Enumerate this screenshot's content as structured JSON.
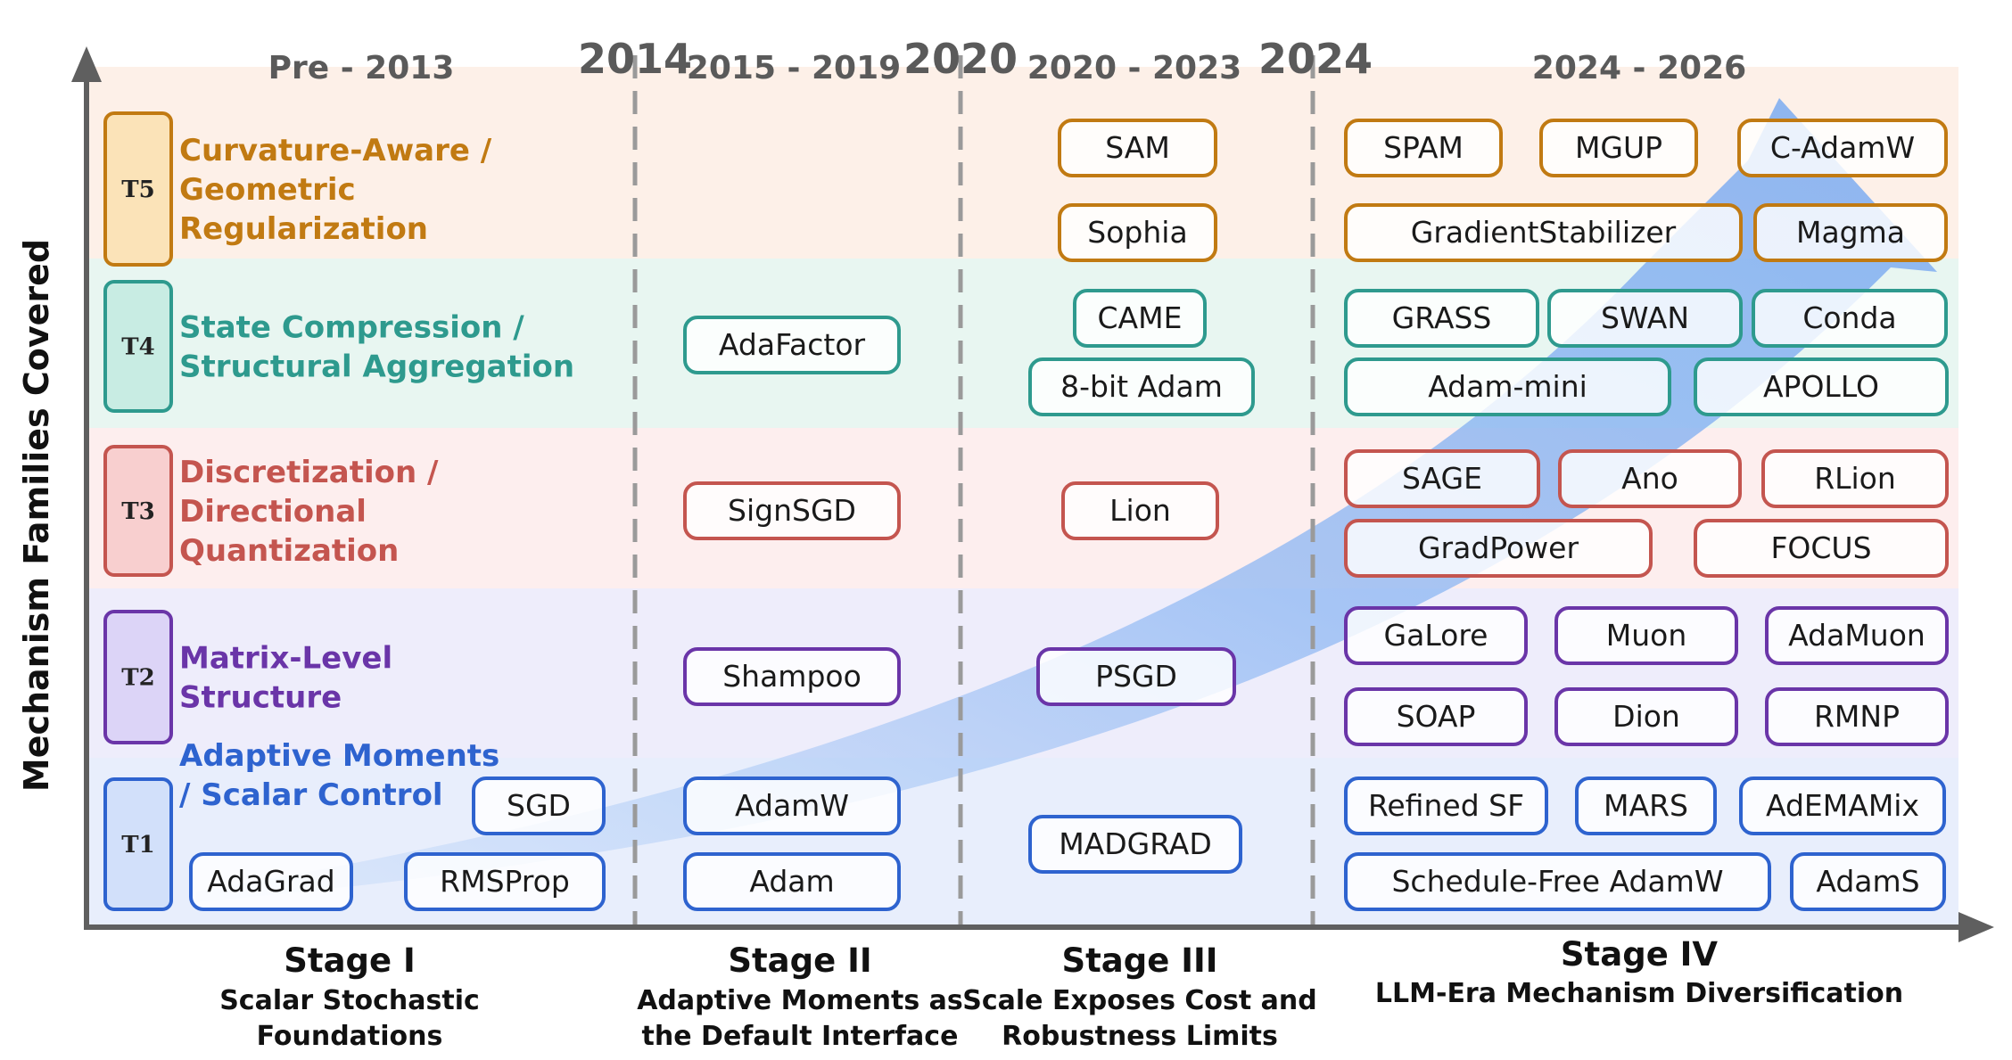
{
  "axes": {
    "y_title": "Mechanism Families Covered"
  },
  "periods": [
    {
      "label": "Pre - 2013"
    },
    {
      "label": "2015 - 2019"
    },
    {
      "label": "2020 - 2023"
    },
    {
      "label": "2024 - 2026"
    }
  ],
  "boundary_years": [
    "2014",
    "2020",
    "2024"
  ],
  "stages": [
    {
      "title": "Stage I",
      "subtitle": [
        "Scalar Stochastic",
        "Foundations"
      ]
    },
    {
      "title": "Stage II",
      "subtitle": [
        "Adaptive Moments as",
        "the Default Interface"
      ]
    },
    {
      "title": "Stage III",
      "subtitle": [
        "Scale Exposes Cost and",
        "Robustness Limits"
      ]
    },
    {
      "title": "Stage IV",
      "subtitle": [
        "LLM-Era Mechanism Diversification"
      ]
    }
  ],
  "tiers": [
    {
      "code": "T5",
      "name": [
        "Curvature-Aware /",
        "Geometric",
        "Regularization"
      ],
      "color": "#c17a12",
      "fill": "#fbe3b8",
      "band": "#fdf0e8"
    },
    {
      "code": "T4",
      "name": [
        "State Compression /",
        "Structural Aggregation"
      ],
      "color": "#2e9a8e",
      "fill": "#c8ece3",
      "band": "#e8f6f1"
    },
    {
      "code": "T3",
      "name": [
        "Discretization /",
        "Directional",
        "Quantization"
      ],
      "color": "#c4554f",
      "fill": "#f8cfcf",
      "band": "#fdeeee"
    },
    {
      "code": "T2",
      "name": [
        "Matrix-Level",
        "Structure"
      ],
      "color": "#6a35a8",
      "fill": "#dcd4f7",
      "band": "#eeedfb"
    },
    {
      "code": "T1",
      "name": [
        "Adaptive Moments",
        "/ Scalar Control"
      ],
      "color": "#2e63cf",
      "fill": "#d2e0fa",
      "band": "#e8eefc"
    }
  ],
  "methods": [
    {
      "label": "SGD",
      "tier": "T1"
    },
    {
      "label": "AdaGrad",
      "tier": "T1"
    },
    {
      "label": "RMSProp",
      "tier": "T1"
    },
    {
      "label": "AdamW",
      "tier": "T1"
    },
    {
      "label": "Adam",
      "tier": "T1"
    },
    {
      "label": "MADGRAD",
      "tier": "T1"
    },
    {
      "label": "Refined SF",
      "tier": "T1"
    },
    {
      "label": "MARS",
      "tier": "T1"
    },
    {
      "label": "AdEMAMix",
      "tier": "T1"
    },
    {
      "label": "Schedule-Free AdamW",
      "tier": "T1"
    },
    {
      "label": "AdamS",
      "tier": "T1"
    },
    {
      "label": "Shampoo",
      "tier": "T2"
    },
    {
      "label": "PSGD",
      "tier": "T2"
    },
    {
      "label": "GaLore",
      "tier": "T2"
    },
    {
      "label": "Muon",
      "tier": "T2"
    },
    {
      "label": "AdaMuon",
      "tier": "T2"
    },
    {
      "label": "SOAP",
      "tier": "T2"
    },
    {
      "label": "Dion",
      "tier": "T2"
    },
    {
      "label": "RMNP",
      "tier": "T2"
    },
    {
      "label": "SignSGD",
      "tier": "T3"
    },
    {
      "label": "Lion",
      "tier": "T3"
    },
    {
      "label": "SAGE",
      "tier": "T3"
    },
    {
      "label": "Ano",
      "tier": "T3"
    },
    {
      "label": "RLion",
      "tier": "T3"
    },
    {
      "label": "GradPower",
      "tier": "T3"
    },
    {
      "label": "FOCUS",
      "tier": "T3"
    },
    {
      "label": "AdaFactor",
      "tier": "T4"
    },
    {
      "label": "CAME",
      "tier": "T4"
    },
    {
      "label": "8-bit Adam",
      "tier": "T4"
    },
    {
      "label": "GRASS",
      "tier": "T4"
    },
    {
      "label": "SWAN",
      "tier": "T4"
    },
    {
      "label": "Conda",
      "tier": "T4"
    },
    {
      "label": "Adam-mini",
      "tier": "T4"
    },
    {
      "label": "APOLLO",
      "tier": "T4"
    },
    {
      "label": "SAM",
      "tier": "T5"
    },
    {
      "label": "Sophia",
      "tier": "T5"
    },
    {
      "label": "SPAM",
      "tier": "T5"
    },
    {
      "label": "MGUP",
      "tier": "T5"
    },
    {
      "label": "C-AdamW",
      "tier": "T5"
    },
    {
      "label": "GradientStabilizer",
      "tier": "T5"
    },
    {
      "label": "Magma",
      "tier": "T5"
    }
  ],
  "colors": {
    "axis": "#5f5f5f",
    "divider": "#9a9a9a",
    "trend_arrow": "#9cc2f5"
  }
}
